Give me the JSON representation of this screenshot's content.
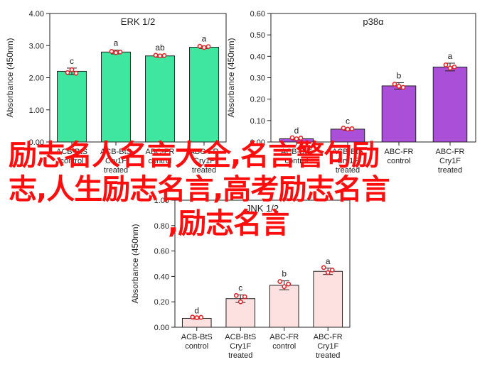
{
  "chart_data": [
    {
      "type": "bar",
      "title": "ERK 1/2",
      "ylabel": "Absorbance (450nm)",
      "ylim": [
        0,
        4
      ],
      "yticks": [
        "0.00",
        "1.00",
        "2.00",
        "3.00",
        "4.00"
      ],
      "categories": [
        [
          "ACB-BtS",
          "control"
        ],
        [
          "ACB-BtS",
          "Cry1F",
          "treated"
        ],
        [
          "ABC-FR",
          "control"
        ],
        [
          "ABC-FR",
          "Cry1F",
          "treated"
        ]
      ],
      "values": [
        2.2,
        2.8,
        2.68,
        2.95
      ],
      "errors": [
        0.1,
        0.06,
        0.04,
        0.04
      ],
      "letters": [
        "c",
        "a",
        "ab",
        "a"
      ],
      "points": [
        [
          2.16,
          2.25,
          2.14
        ],
        [
          2.82,
          2.78,
          2.8
        ],
        [
          2.7,
          2.68,
          2.69
        ],
        [
          2.98,
          2.94,
          2.97
        ]
      ],
      "bar_color": "#3ee6a0"
    },
    {
      "type": "bar",
      "title": "p38α",
      "ylabel": "Absorbance (450nm)",
      "ylim": [
        0,
        0.6
      ],
      "yticks": [
        "0.00",
        "0.10",
        "0.20",
        "0.30",
        "0.40",
        "0.50",
        "0.60"
      ],
      "categories": [
        [
          "ACB-BtS",
          "control"
        ],
        [
          "ACB-BtS",
          "Cry1F",
          "treated"
        ],
        [
          "ABC-FR",
          "control"
        ],
        [
          "ABC-FR",
          "Cry1F",
          "treated"
        ]
      ],
      "values": [
        0.015,
        0.06,
        0.262,
        0.35
      ],
      "errors": [
        0.005,
        0.005,
        0.015,
        0.018
      ],
      "letters": [
        "d",
        "c",
        "b",
        "a"
      ],
      "points": [
        [
          0.02,
          0.015,
          0.018
        ],
        [
          0.065,
          0.06,
          0.062
        ],
        [
          0.27,
          0.26,
          0.255
        ],
        [
          0.36,
          0.345,
          0.35
        ]
      ],
      "bar_color": "#a94fd8"
    },
    {
      "type": "bar",
      "title": "JNK 1/2",
      "ylabel": "Absorbance (450nm)",
      "ylim": [
        0,
        1
      ],
      "yticks": [
        "0.00",
        "0.20",
        "0.40",
        "0.60",
        "0.80",
        "1.00"
      ],
      "categories": [
        [
          "ACB-BtS",
          "control"
        ],
        [
          "ACB-BtS",
          "Cry1F",
          "treated"
        ],
        [
          "ABC-FR",
          "control"
        ],
        [
          "ABC-FR",
          "Cry1F",
          "treated"
        ]
      ],
      "values": [
        0.07,
        0.225,
        0.33,
        0.44
      ],
      "errors": [
        0.005,
        0.03,
        0.035,
        0.025
      ],
      "letters": [
        "d",
        "c",
        "b",
        "a"
      ],
      "points": [
        [
          0.08,
          0.075,
          0.078
        ],
        [
          0.25,
          0.2,
          0.24
        ],
        [
          0.36,
          0.32,
          0.34
        ],
        [
          0.47,
          0.43,
          0.45
        ]
      ],
      "bar_color": "#fde0e0"
    }
  ],
  "banner": {
    "line1": "励志名人名言大全,名言警句励",
    "line2": "志,人生励志名言,高考励志名言",
    "line3": ",励志名言"
  },
  "colors": {
    "point": "#e8262a",
    "banner": "#ff0d0d"
  }
}
